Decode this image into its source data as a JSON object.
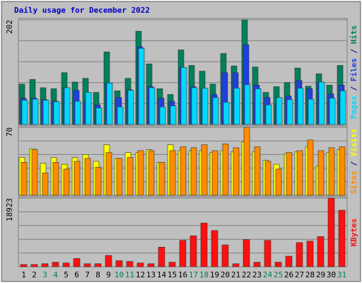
{
  "chart_data": [
    {
      "type": "bar",
      "title": "Daily usage for December 2022",
      "series": [
        {
          "name": "Hits",
          "color": "#00805c",
          "values": [
            78,
            87,
            71,
            69,
            100,
            82,
            89,
            62,
            140,
            65,
            89,
            180,
            117,
            69,
            58,
            144,
            114,
            103,
            78,
            137,
            113,
            202,
            111,
            62,
            73,
            81,
            109,
            74,
            98,
            76,
            114
          ]
        },
        {
          "name": "Files",
          "color": "#1f40e0",
          "values": [
            51,
            51,
            48,
            45,
            71,
            66,
            45,
            38,
            80,
            52,
            67,
            150,
            73,
            51,
            45,
            110,
            73,
            69,
            58,
            100,
            100,
            154,
            76,
            52,
            40,
            55,
            85,
            69,
            82,
            59,
            76
          ]
        },
        {
          "name": "Pages",
          "color": "#00d8ff",
          "values": [
            47,
            49,
            47,
            44,
            71,
            45,
            62,
            32,
            80,
            34,
            66,
            147,
            71,
            34,
            36,
            110,
            71,
            70,
            52,
            43,
            70,
            77,
            69,
            38,
            52,
            48,
            70,
            49,
            82,
            51,
            65
          ]
        }
      ],
      "ylim": [
        0,
        202
      ],
      "yticks": [
        202
      ],
      "legend_separator": " / "
    },
    {
      "type": "bar",
      "series": [
        {
          "name": "Visits",
          "color": "#ffff00",
          "values": [
            39,
            48,
            33,
            39,
            32,
            39,
            42,
            35,
            52,
            38,
            44,
            44,
            47,
            34,
            52,
            46,
            46,
            46,
            44,
            46,
            45,
            55,
            45,
            36,
            32,
            43,
            45,
            50,
            30,
            44,
            47
          ]
        },
        {
          "name": "Sites",
          "color": "#ff8c00",
          "values": [
            34,
            47,
            23,
            34,
            27,
            35,
            38,
            29,
            44,
            38,
            39,
            46,
            46,
            34,
            46,
            50,
            49,
            52,
            46,
            53,
            49,
            70,
            50,
            35,
            27,
            44,
            46,
            57,
            46,
            49,
            50
          ]
        }
      ],
      "ylim": [
        0,
        70
      ],
      "yticks": [
        70
      ],
      "legend_separator": " / "
    },
    {
      "type": "bar",
      "categories": [
        "1",
        "2",
        "3",
        "4",
        "5",
        "6",
        "7",
        "8",
        "9",
        "10",
        "11",
        "12",
        "13",
        "14",
        "15",
        "16",
        "17",
        "18",
        "19",
        "20",
        "21",
        "22",
        "23",
        "24",
        "25",
        "26",
        "27",
        "28",
        "29",
        "30",
        "31"
      ],
      "category_colors": [
        "#000",
        "#000",
        "#00805c",
        "#00805c",
        "#000",
        "#000",
        "#000",
        "#000",
        "#000",
        "#00805c",
        "#00805c",
        "#000",
        "#000",
        "#000",
        "#000",
        "#000",
        "#00805c",
        "#00805c",
        "#000",
        "#000",
        "#000",
        "#000",
        "#000",
        "#00805c",
        "#00805c",
        "#000",
        "#000",
        "#000",
        "#000",
        "#000",
        "#00805c"
      ],
      "series": [
        {
          "name": "KBytes",
          "color": "#ff1010",
          "values": [
            624,
            624,
            832,
            1248,
            1040,
            2287,
            832,
            832,
            3119,
            1664,
            1456,
            1040,
            832,
            5407,
            1248,
            7278,
            8526,
            12061,
            9982,
            6030,
            832,
            7486,
            1248,
            7278,
            1248,
            2911,
            6654,
            7070,
            8318,
            18923,
            15596
          ]
        }
      ],
      "ylim": [
        0,
        18923
      ],
      "yticks": [
        18923
      ]
    }
  ]
}
